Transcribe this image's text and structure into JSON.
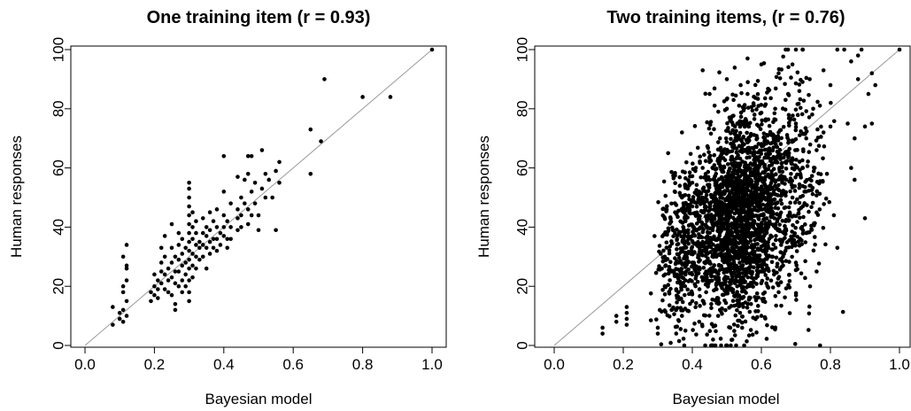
{
  "chart_data": [
    {
      "type": "scatter",
      "title": "One training item (r = 0.93)",
      "xlabel": "Bayesian model",
      "ylabel": "Human responses",
      "xlim": [
        0,
        1
      ],
      "ylim": [
        0,
        100
      ],
      "x_ticks": [
        "0.0",
        "0.2",
        "0.4",
        "0.6",
        "0.8",
        "1.0"
      ],
      "y_ticks": [
        "0",
        "20",
        "40",
        "60",
        "80",
        "100"
      ],
      "grid": false,
      "reference_line": {
        "from": [
          0,
          0
        ],
        "to": [
          1,
          100
        ],
        "color": "#9a9a9a"
      },
      "point_color": "#000000",
      "points": [
        [
          0.08,
          13
        ],
        [
          0.08,
          7
        ],
        [
          0.1,
          11
        ],
        [
          0.1,
          9
        ],
        [
          0.11,
          30
        ],
        [
          0.11,
          20
        ],
        [
          0.11,
          18
        ],
        [
          0.11,
          12
        ],
        [
          0.11,
          8
        ],
        [
          0.12,
          34
        ],
        [
          0.12,
          27
        ],
        [
          0.12,
          22
        ],
        [
          0.12,
          15
        ],
        [
          0.12,
          10
        ],
        [
          0.12,
          26
        ],
        [
          0.19,
          18
        ],
        [
          0.19,
          15
        ],
        [
          0.2,
          24
        ],
        [
          0.2,
          20
        ],
        [
          0.2,
          17
        ],
        [
          0.21,
          22
        ],
        [
          0.21,
          19
        ],
        [
          0.21,
          16
        ],
        [
          0.22,
          33
        ],
        [
          0.22,
          28
        ],
        [
          0.22,
          25
        ],
        [
          0.22,
          21
        ],
        [
          0.23,
          37
        ],
        [
          0.23,
          30
        ],
        [
          0.23,
          24
        ],
        [
          0.23,
          19
        ],
        [
          0.24,
          26
        ],
        [
          0.24,
          22
        ],
        [
          0.24,
          18
        ],
        [
          0.25,
          41
        ],
        [
          0.25,
          33
        ],
        [
          0.25,
          28
        ],
        [
          0.25,
          23
        ],
        [
          0.25,
          17
        ],
        [
          0.26,
          30
        ],
        [
          0.26,
          25
        ],
        [
          0.26,
          21
        ],
        [
          0.26,
          14
        ],
        [
          0.26,
          12
        ],
        [
          0.27,
          38
        ],
        [
          0.27,
          34
        ],
        [
          0.27,
          29
        ],
        [
          0.27,
          25
        ],
        [
          0.27,
          20
        ],
        [
          0.28,
          36
        ],
        [
          0.28,
          31
        ],
        [
          0.28,
          27
        ],
        [
          0.28,
          22
        ],
        [
          0.28,
          18
        ],
        [
          0.29,
          33
        ],
        [
          0.29,
          28
        ],
        [
          0.29,
          24
        ],
        [
          0.29,
          20
        ],
        [
          0.3,
          55
        ],
        [
          0.3,
          53
        ],
        [
          0.3,
          50
        ],
        [
          0.3,
          47
        ],
        [
          0.3,
          44
        ],
        [
          0.3,
          41
        ],
        [
          0.3,
          38
        ],
        [
          0.3,
          35
        ],
        [
          0.3,
          32
        ],
        [
          0.3,
          29
        ],
        [
          0.3,
          26
        ],
        [
          0.3,
          22
        ],
        [
          0.3,
          18
        ],
        [
          0.3,
          15
        ],
        [
          0.31,
          45
        ],
        [
          0.31,
          40
        ],
        [
          0.31,
          36
        ],
        [
          0.31,
          31
        ],
        [
          0.31,
          27
        ],
        [
          0.31,
          23
        ],
        [
          0.32,
          42
        ],
        [
          0.32,
          38
        ],
        [
          0.32,
          34
        ],
        [
          0.32,
          30
        ],
        [
          0.32,
          26
        ],
        [
          0.33,
          33
        ],
        [
          0.33,
          29
        ],
        [
          0.33,
          35
        ],
        [
          0.34,
          43
        ],
        [
          0.34,
          38
        ],
        [
          0.34,
          34
        ],
        [
          0.34,
          30
        ],
        [
          0.35,
          37
        ],
        [
          0.35,
          33
        ],
        [
          0.35,
          26
        ],
        [
          0.35,
          40
        ],
        [
          0.36,
          45
        ],
        [
          0.36,
          39
        ],
        [
          0.36,
          35
        ],
        [
          0.36,
          31
        ],
        [
          0.37,
          42
        ],
        [
          0.37,
          36
        ],
        [
          0.37,
          33
        ],
        [
          0.38,
          46
        ],
        [
          0.38,
          40
        ],
        [
          0.38,
          36
        ],
        [
          0.38,
          32
        ],
        [
          0.39,
          38
        ],
        [
          0.39,
          34
        ],
        [
          0.4,
          64
        ],
        [
          0.4,
          52
        ],
        [
          0.4,
          44
        ],
        [
          0.4,
          40
        ],
        [
          0.4,
          37
        ],
        [
          0.41,
          42
        ],
        [
          0.41,
          36
        ],
        [
          0.41,
          33
        ],
        [
          0.42,
          48
        ],
        [
          0.42,
          40
        ],
        [
          0.42,
          36
        ],
        [
          0.44,
          57
        ],
        [
          0.44,
          46
        ],
        [
          0.44,
          43
        ],
        [
          0.44,
          39
        ],
        [
          0.45,
          50
        ],
        [
          0.45,
          44
        ],
        [
          0.45,
          40
        ],
        [
          0.46,
          56
        ],
        [
          0.46,
          48
        ],
        [
          0.47,
          64
        ],
        [
          0.47,
          58
        ],
        [
          0.47,
          46
        ],
        [
          0.47,
          41
        ],
        [
          0.48,
          64
        ],
        [
          0.48,
          52
        ],
        [
          0.48,
          44
        ],
        [
          0.49,
          55
        ],
        [
          0.49,
          48
        ],
        [
          0.5,
          44
        ],
        [
          0.5,
          39
        ],
        [
          0.51,
          66
        ],
        [
          0.51,
          53
        ],
        [
          0.52,
          58
        ],
        [
          0.52,
          50
        ],
        [
          0.53,
          56
        ],
        [
          0.54,
          50
        ],
        [
          0.55,
          59
        ],
        [
          0.55,
          39
        ],
        [
          0.56,
          62
        ],
        [
          0.56,
          55
        ],
        [
          0.65,
          73
        ],
        [
          0.65,
          58
        ],
        [
          0.68,
          69
        ],
        [
          0.69,
          90
        ],
        [
          0.8,
          84
        ],
        [
          0.88,
          84
        ],
        [
          1.0,
          100
        ]
      ]
    },
    {
      "type": "scatter",
      "title": "Two training items, (r = 0.76)",
      "xlabel": "Bayesian model",
      "ylabel": "Human responses",
      "xlim": [
        0,
        1
      ],
      "ylim": [
        0,
        100
      ],
      "x_ticks": [
        "0.0",
        "0.2",
        "0.4",
        "0.6",
        "0.8",
        "1.0"
      ],
      "y_ticks": [
        "0",
        "20",
        "40",
        "60",
        "80",
        "100"
      ],
      "grid": false,
      "reference_line": {
        "from": [
          0,
          0
        ],
        "to": [
          1,
          100
        ],
        "color": "#9a9a9a"
      },
      "point_color": "#000000",
      "points": [
        [
          0.14,
          4
        ],
        [
          0.14,
          6
        ],
        [
          0.18,
          8
        ],
        [
          0.18,
          10
        ],
        [
          0.21,
          7
        ],
        [
          0.21,
          9
        ],
        [
          0.21,
          11
        ],
        [
          0.21,
          13
        ],
        [
          0.3,
          4
        ],
        [
          0.3,
          6
        ],
        [
          0.32,
          30
        ],
        [
          0.32,
          20
        ],
        [
          0.33,
          65
        ],
        [
          0.34,
          12
        ],
        [
          0.34,
          25
        ],
        [
          0.35,
          45
        ],
        [
          0.35,
          38
        ],
        [
          0.36,
          28
        ],
        [
          0.36,
          18
        ],
        [
          0.37,
          50
        ],
        [
          0.37,
          10
        ],
        [
          0.38,
          42
        ],
        [
          0.38,
          33
        ],
        [
          0.38,
          22
        ],
        [
          0.38,
          5
        ],
        [
          0.4,
          55
        ],
        [
          0.4,
          47
        ],
        [
          0.4,
          37
        ],
        [
          0.4,
          28
        ],
        [
          0.4,
          15
        ],
        [
          0.41,
          60
        ],
        [
          0.42,
          52
        ],
        [
          0.42,
          8
        ],
        [
          0.43,
          93
        ],
        [
          0.43,
          45
        ],
        [
          0.43,
          35
        ],
        [
          0.44,
          25
        ],
        [
          0.44,
          18
        ],
        [
          0.45,
          85
        ],
        [
          0.45,
          62
        ],
        [
          0.45,
          48
        ],
        [
          0.46,
          40
        ],
        [
          0.46,
          2
        ],
        [
          0.47,
          30
        ],
        [
          0.48,
          70
        ],
        [
          0.48,
          12
        ],
        [
          0.49,
          55
        ],
        [
          0.5,
          90
        ],
        [
          0.5,
          80
        ],
        [
          0.5,
          65
        ],
        [
          0.5,
          45
        ],
        [
          0.5,
          36
        ],
        [
          0.51,
          27
        ],
        [
          0.51,
          6
        ],
        [
          0.52,
          58
        ],
        [
          0.52,
          50
        ],
        [
          0.53,
          20
        ],
        [
          0.53,
          75
        ],
        [
          0.54,
          88
        ],
        [
          0.54,
          42
        ],
        [
          0.55,
          68
        ],
        [
          0.55,
          33
        ],
        [
          0.56,
          97
        ],
        [
          0.56,
          85
        ],
        [
          0.56,
          60
        ],
        [
          0.57,
          52
        ],
        [
          0.57,
          14
        ],
        [
          0.58,
          78
        ],
        [
          0.58,
          38
        ],
        [
          0.59,
          47
        ],
        [
          0.6,
          95
        ],
        [
          0.6,
          25
        ],
        [
          0.6,
          10
        ],
        [
          0.61,
          70
        ],
        [
          0.61,
          56
        ],
        [
          0.62,
          86
        ],
        [
          0.62,
          40
        ],
        [
          0.63,
          63
        ],
        [
          0.63,
          30
        ],
        [
          0.64,
          80
        ],
        [
          0.64,
          48
        ],
        [
          0.65,
          92
        ],
        [
          0.65,
          72
        ],
        [
          0.65,
          18
        ],
        [
          0.66,
          55
        ],
        [
          0.66,
          35
        ],
        [
          0.67,
          83
        ],
        [
          0.67,
          42
        ],
        [
          0.68,
          65
        ],
        [
          0.69,
          95
        ],
        [
          0.69,
          50
        ],
        [
          0.7,
          75
        ],
        [
          0.7,
          28
        ],
        [
          0.7,
          100
        ],
        [
          0.71,
          86
        ],
        [
          0.72,
          60
        ],
        [
          0.72,
          100
        ],
        [
          0.73,
          70
        ],
        [
          0.73,
          38
        ],
        [
          0.74,
          90
        ],
        [
          0.74,
          54
        ],
        [
          0.75,
          80
        ],
        [
          0.76,
          66
        ],
        [
          0.76,
          25
        ],
        [
          0.77,
          0
        ],
        [
          0.78,
          93
        ],
        [
          0.78,
          72
        ],
        [
          0.79,
          58
        ],
        [
          0.8,
          74
        ],
        [
          0.8,
          88
        ],
        [
          0.81,
          44
        ],
        [
          0.82,
          33
        ],
        [
          0.82,
          100
        ],
        [
          0.84,
          100
        ],
        [
          0.85,
          75
        ],
        [
          0.86,
          96
        ],
        [
          0.86,
          60
        ],
        [
          0.87,
          70
        ],
        [
          0.87,
          56
        ],
        [
          0.88,
          98
        ],
        [
          0.88,
          90
        ],
        [
          0.89,
          100
        ],
        [
          0.9,
          43
        ],
        [
          0.9,
          74
        ],
        [
          0.91,
          85
        ],
        [
          0.92,
          92
        ],
        [
          0.92,
          75
        ],
        [
          0.93,
          88
        ],
        [
          1.0,
          100
        ]
      ],
      "density_clusters": [
        {
          "mx": 0.4,
          "sx": 0.035,
          "my": 36,
          "sy": 14,
          "n": 320,
          "seed": 11
        },
        {
          "mx": 0.48,
          "sx": 0.04,
          "my": 40,
          "sy": 17,
          "n": 620,
          "seed": 23
        },
        {
          "mx": 0.55,
          "sx": 0.035,
          "my": 44,
          "sy": 17,
          "n": 820,
          "seed": 37
        },
        {
          "mx": 0.62,
          "sx": 0.04,
          "my": 48,
          "sy": 18,
          "n": 500,
          "seed": 51
        },
        {
          "mx": 0.7,
          "sx": 0.04,
          "my": 52,
          "sy": 19,
          "n": 260,
          "seed": 67
        },
        {
          "mx": 0.34,
          "sx": 0.025,
          "my": 30,
          "sy": 12,
          "n": 120,
          "seed": 79
        }
      ]
    }
  ]
}
